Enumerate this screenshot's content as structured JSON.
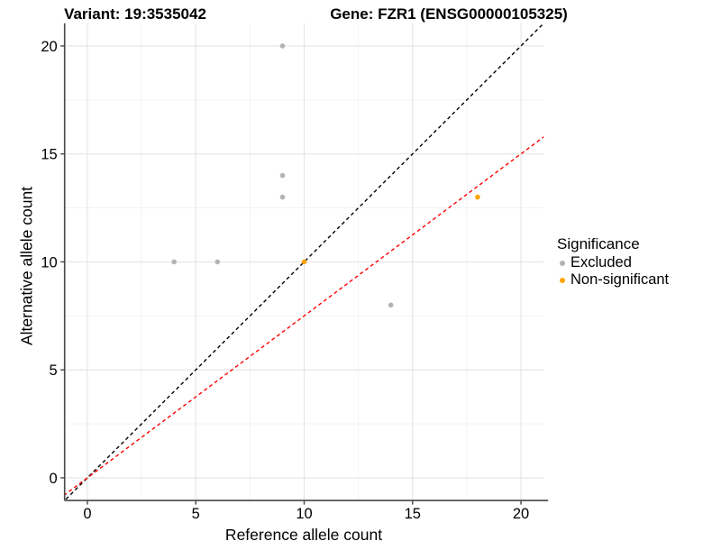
{
  "header": {
    "variant_title": "Variant: 19:3535042",
    "gene_title": "Gene: FZR1 (ENSG00000105325)"
  },
  "legend": {
    "title": "Significance",
    "items": [
      {
        "label": "Excluded",
        "color": "#b3b3b3"
      },
      {
        "label": "Non-significant",
        "color": "#ffa500"
      }
    ]
  },
  "chart_data": {
    "type": "scatter",
    "title_left": "Variant: 19:3535042",
    "title_right": "Gene: FZR1 (ENSG00000105325)",
    "xlabel": "Reference allele count",
    "ylabel": "Alternative allele count",
    "xlim": [
      -1.05,
      21.05
    ],
    "ylim": [
      -1.05,
      21.05
    ],
    "xticks": [
      0,
      5,
      10,
      15,
      20
    ],
    "yticks": [
      0,
      5,
      10,
      15,
      20
    ],
    "xminor": [
      2.5,
      7.5,
      12.5,
      17.5
    ],
    "yminor": [
      2.5,
      7.5,
      12.5,
      17.5
    ],
    "grid": "major+minor",
    "legend_position": "right",
    "series": [
      {
        "name": "Excluded",
        "color": "#b3b3b3",
        "points": [
          [
            4,
            10
          ],
          [
            6,
            10
          ],
          [
            9,
            13
          ],
          [
            9,
            14
          ],
          [
            9,
            20
          ],
          [
            14,
            8
          ]
        ]
      },
      {
        "name": "Non-significant",
        "color": "#ffa500",
        "points": [
          [
            10,
            10
          ],
          [
            18,
            13
          ]
        ]
      }
    ],
    "ablines": [
      {
        "name": "identity-line",
        "color": "#000000",
        "slope": 1,
        "intercept": 0,
        "dash": "4 3.2"
      },
      {
        "name": "ratio-fit-line",
        "color": "#ff0000",
        "slope": 0.75,
        "intercept": 0,
        "dash": "4 3.2"
      }
    ]
  },
  "style": {
    "grid_major": "#e4e4e4",
    "grid_minor": "#f1f1f1",
    "axis_color": "#474747",
    "point_radius": 2.8,
    "line_width": 1.4
  }
}
